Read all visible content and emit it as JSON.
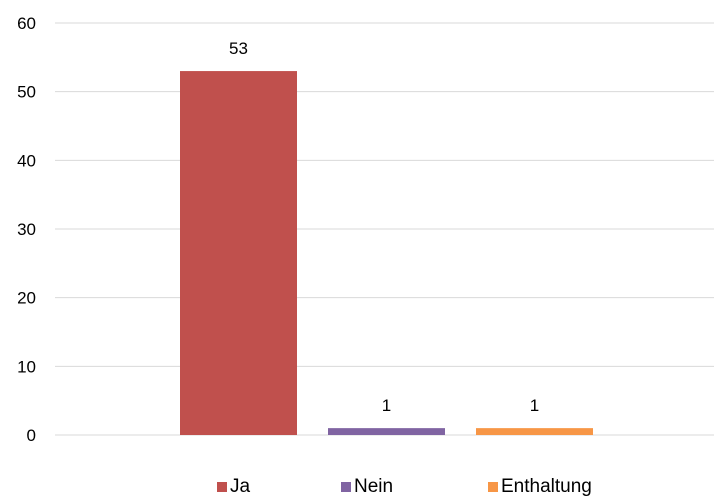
{
  "chart_data": {
    "type": "bar",
    "title": "",
    "xlabel": "",
    "ylabel": "",
    "ylim": [
      0,
      60
    ],
    "yticks": [
      0,
      10,
      20,
      30,
      40,
      50,
      60
    ],
    "grid": true,
    "legend_position": "bottom",
    "series": [
      {
        "name": "Ja",
        "value": 53,
        "color": "#C0504D"
      },
      {
        "name": "Nein",
        "value": 1,
        "color": "#8064A2"
      },
      {
        "name": "Enthaltung",
        "value": 1,
        "color": "#F79646"
      }
    ]
  }
}
